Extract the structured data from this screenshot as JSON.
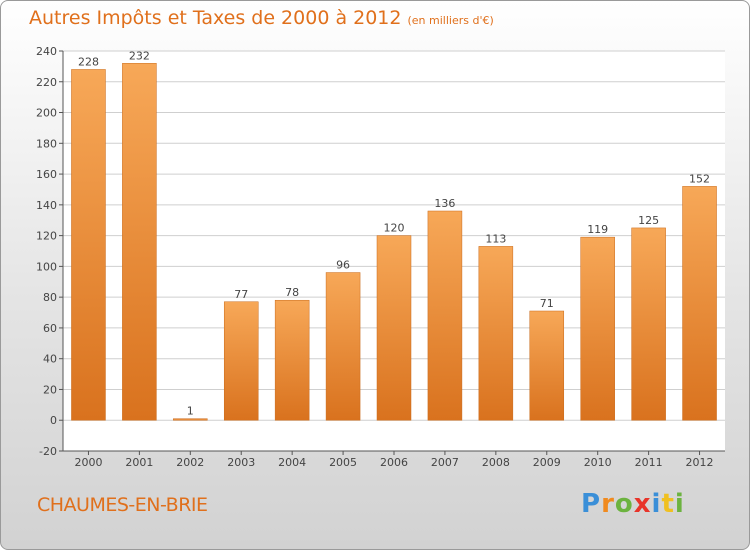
{
  "title": "Autres Impôts et Taxes de 2000 à 2012",
  "subtitle": "(en milliers d'€)",
  "town": "CHAUMES-EN-BRIE",
  "logo": {
    "text": "Proxiti",
    "letter_colors": [
      "#3a8fd8",
      "#f08a1e",
      "#6cb33f",
      "#e8342a",
      "#3a8fd8",
      "#f0c020",
      "#6cb33f"
    ]
  },
  "colors": {
    "bar_light": "#f7a858",
    "bar_dark": "#d9721e",
    "label": "#444444",
    "axis": "#555555",
    "grid": "#cfcfcf",
    "plot_bg": "#ffffff",
    "title": "#e0701c"
  },
  "chart_data": {
    "type": "bar",
    "categories": [
      "2000",
      "2001",
      "2002",
      "2003",
      "2004",
      "2005",
      "2006",
      "2007",
      "2008",
      "2009",
      "2010",
      "2011",
      "2012"
    ],
    "values": [
      228,
      232,
      1,
      77,
      78,
      96,
      120,
      136,
      113,
      71,
      119,
      125,
      152
    ],
    "title": "Autres Impôts et Taxes de 2000 à 2012",
    "subtitle": "(en milliers d'€)",
    "xlabel": "",
    "ylabel": "",
    "ylim": [
      -20,
      240
    ],
    "yticks": [
      -20,
      0,
      20,
      40,
      60,
      80,
      100,
      120,
      140,
      160,
      180,
      200,
      220,
      240
    ],
    "grid": true,
    "data_labels": true
  }
}
